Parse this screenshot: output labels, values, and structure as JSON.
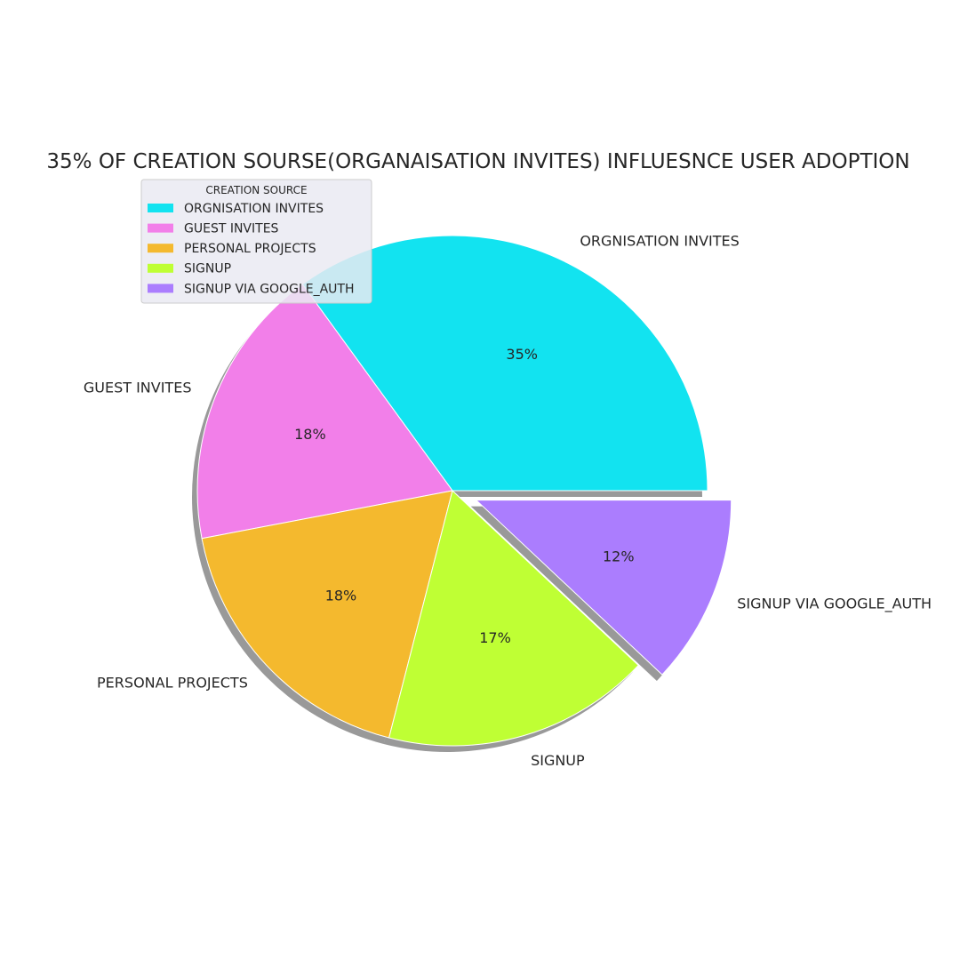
{
  "chart_data": {
    "type": "pie",
    "title": "35% OF CREATION SOURSE(ORGANAISATION INVITES) INFLUESNCE USER ADOPTION",
    "legend_title": "CREATION SOURCE",
    "legend_position": "upper-left",
    "shadow": true,
    "categories": [
      "ORGNISATION INVITES",
      "GUEST INVITES",
      "PERSONAL PROJECTS",
      "SIGNUP",
      "SIGNUP VIA GOOGLE_AUTH"
    ],
    "values": [
      35,
      18,
      18,
      17,
      12
    ],
    "value_labels": [
      "35%",
      "18%",
      "18%",
      "17%",
      "12%"
    ],
    "colors": [
      "#12e3f0",
      "#f27fe9",
      "#f4b92e",
      "#bfff34",
      "#ab7dfe"
    ],
    "exploded": [
      false,
      false,
      false,
      false,
      true
    ]
  }
}
